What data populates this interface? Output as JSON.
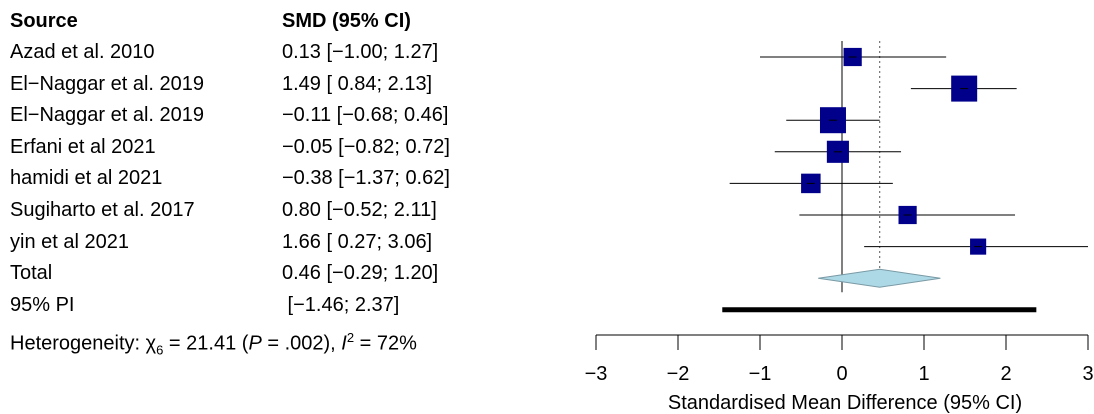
{
  "table": {
    "headers": {
      "source": "Source",
      "smd": "SMD (95% CI)"
    },
    "rows": [
      {
        "source": "Azad et al. 2010",
        "ci_text": "0.13 [−1.00; 1.27]"
      },
      {
        "source": "El−Naggar et al. 2019",
        "ci_text": "1.49 [ 0.84; 2.13]"
      },
      {
        "source": "El−Naggar et al. 2019",
        "ci_text": "−0.11 [−0.68; 0.46]"
      },
      {
        "source": "Erfani et al 2021",
        "ci_text": "−0.05 [−0.82; 0.72]"
      },
      {
        "source": "hamidi et al 2021",
        "ci_text": "−0.38 [−1.37; 0.62]"
      },
      {
        "source": "Sugiharto et al. 2017",
        "ci_text": "0.80 [−0.52; 2.11]"
      },
      {
        "source": "yin et al 2021",
        "ci_text": "1.66 [ 0.27; 3.06]"
      },
      {
        "source": "Total",
        "ci_text": "0.46 [−0.29; 1.20]"
      },
      {
        "source": "95% PI",
        "ci_text": " [−1.46; 2.37]"
      }
    ],
    "heterogeneity": {
      "prefix": "Heterogeneity: χ",
      "df": "6",
      "chi_value": " = 21.41 (",
      "p_letter": "P",
      "p_value": " = .002), ",
      "i_letter": "I",
      "i_exp": "2",
      "i_value": " = 72%"
    }
  },
  "chart_data": {
    "type": "forest",
    "xlabel": "Standardised Mean Difference (95% CI)",
    "xlim": [
      -3,
      3
    ],
    "xticks": [
      -3,
      -2,
      -1,
      0,
      1,
      2,
      3
    ],
    "xtick_labels": [
      "−3",
      "−2",
      "−1",
      "0",
      "1",
      "2",
      "3"
    ],
    "null_line": 0,
    "studies": [
      {
        "est": 0.13,
        "lo": -1.0,
        "hi": 1.27,
        "weight": 0.7
      },
      {
        "est": 1.49,
        "lo": 0.84,
        "hi": 2.13,
        "weight": 1.0
      },
      {
        "est": -0.11,
        "lo": -0.68,
        "hi": 0.46,
        "weight": 1.0
      },
      {
        "est": -0.05,
        "lo": -0.82,
        "hi": 0.72,
        "weight": 0.85
      },
      {
        "est": -0.38,
        "lo": -1.37,
        "hi": 0.62,
        "weight": 0.75
      },
      {
        "est": 0.8,
        "lo": -0.52,
        "hi": 2.11,
        "weight": 0.7
      },
      {
        "est": 1.66,
        "lo": 0.27,
        "hi": 3.06,
        "weight": 0.62
      }
    ],
    "pooled": {
      "est": 0.46,
      "lo": -0.29,
      "hi": 1.2
    },
    "prediction_interval": {
      "lo": -1.46,
      "hi": 2.37
    },
    "colors": {
      "square": "#00008B",
      "diamond": "#ADD8E6",
      "line": "#000000"
    }
  }
}
